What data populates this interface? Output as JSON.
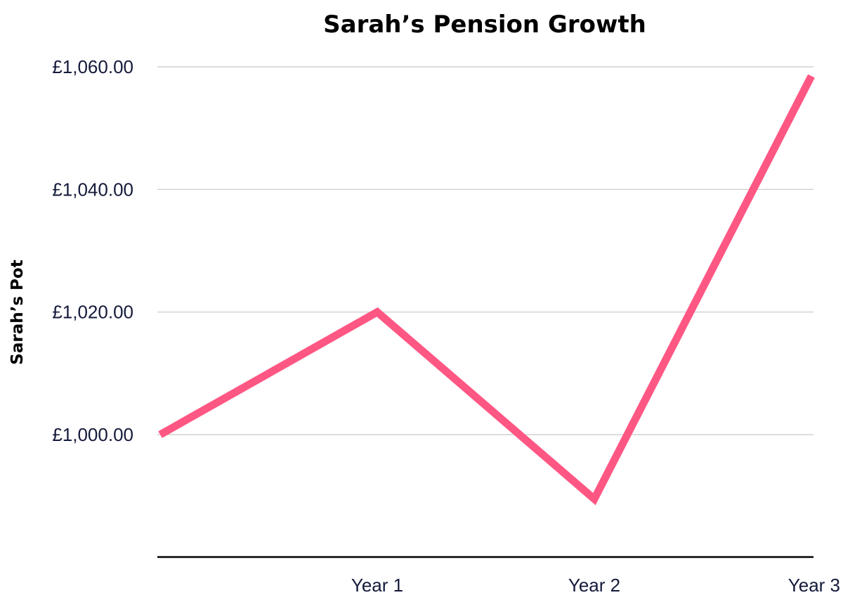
{
  "chart_data": {
    "type": "line",
    "title": "Sarah’s Pension Growth",
    "xlabel": "",
    "ylabel": "Sarah’s Pot",
    "categories": [
      "",
      "Year 1",
      "Year 2",
      "Year 3"
    ],
    "series": [
      {
        "values": [
          1000,
          1020,
          989.5,
          1058.5
        ],
        "color": "#ff5784"
      }
    ],
    "ylim": [
      980,
      1062
    ],
    "yticks": [
      1000,
      1020,
      1040,
      1060
    ],
    "ytick_labels": [
      "£1,000.00",
      "£1,020.00",
      "£1,040.00",
      "£1,060.00"
    ],
    "grid": true,
    "grid_color": "#c8c8c8",
    "axis_color": "#000000",
    "legend": "none"
  }
}
